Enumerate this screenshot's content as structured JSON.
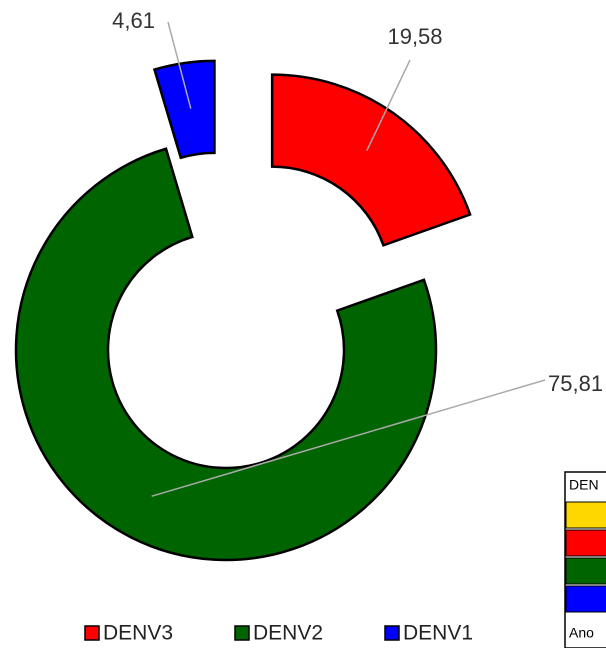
{
  "chart_data": {
    "type": "donut",
    "categories": [
      "DENV3",
      "DENV2",
      "DENV1"
    ],
    "values": [
      19.58,
      75.81,
      4.61
    ],
    "value_labels": [
      "19,58",
      "75,81",
      "4,61"
    ],
    "colors": [
      "#ff0000",
      "#006400",
      "#0000ff"
    ],
    "exploded": [
      true,
      false,
      true
    ],
    "legend": "bottom"
  },
  "table": {
    "header": "DEN",
    "footer": "Ano",
    "colors": [
      "#ffd700",
      "#ff0000",
      "#006400",
      "#0000ff"
    ]
  }
}
